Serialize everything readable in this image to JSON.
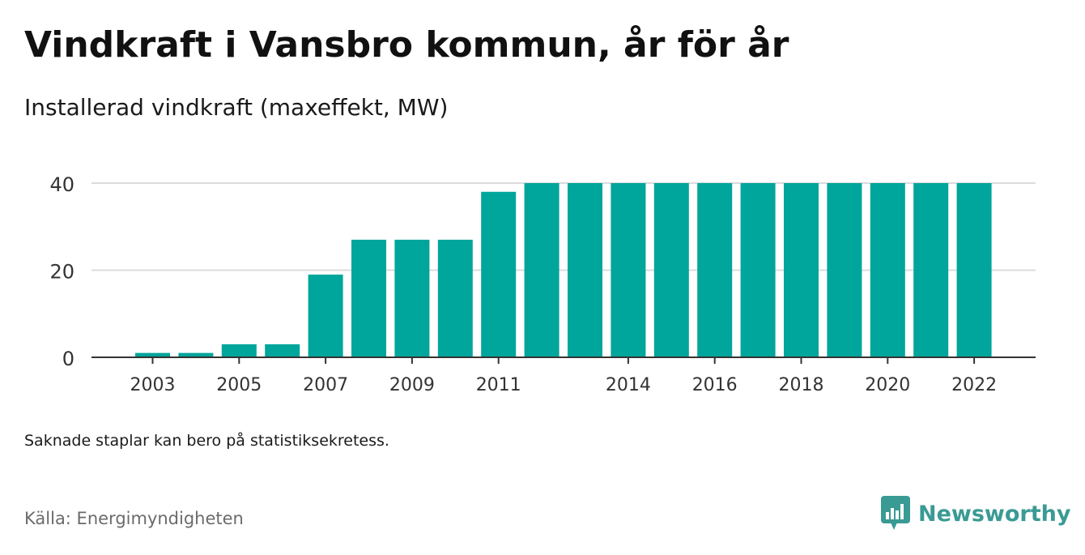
{
  "title": "Vindkraft i Vansbro kommun, år för år",
  "subtitle": "Installerad vindkraft (maxeffekt, MW)",
  "note": "Saknade staplar kan bero på statistiksekretess.",
  "source": "Källa: Energimyndigheten",
  "brand": {
    "name": "Newsworthy",
    "icon": "newsworthy-logo-icon",
    "color": "#3a9a94"
  },
  "chart_data": {
    "type": "bar",
    "categories": [
      "2003",
      "2004",
      "2005",
      "2006",
      "2007",
      "2008",
      "2009",
      "2010",
      "2011",
      "2012",
      "2013",
      "2014",
      "2015",
      "2016",
      "2017",
      "2018",
      "2019",
      "2020",
      "2021",
      "2022"
    ],
    "values": [
      1,
      1,
      3,
      3,
      19,
      27,
      27,
      27,
      38,
      40,
      40,
      40,
      40,
      40,
      40,
      40,
      40,
      40,
      40,
      40
    ],
    "x_tick_labels": [
      "2003",
      "2005",
      "2007",
      "2009",
      "2011",
      "2014",
      "2016",
      "2018",
      "2020",
      "2022"
    ],
    "y_ticks": [
      0,
      20,
      40
    ],
    "ylim": [
      0,
      40
    ],
    "grid": true,
    "bar_color": "#00a59b",
    "xlabel": "",
    "ylabel": ""
  }
}
